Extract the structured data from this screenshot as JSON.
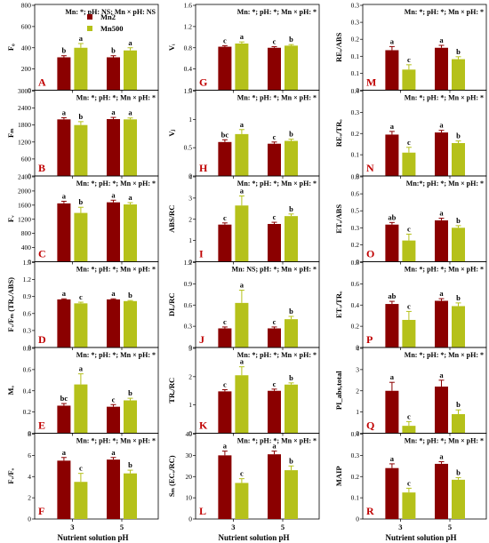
{
  "colors": {
    "Mn2": "#8b0000",
    "Mn500": "#b5c11a"
  },
  "legend": [
    {
      "name": "Mn2",
      "color": "#8b0000"
    },
    {
      "name": "Mn500",
      "color": "#b5c11a"
    }
  ],
  "xlabel": "Nutrient solution pH",
  "categories": [
    "3",
    "5"
  ],
  "chart_data": [
    {
      "id": "A",
      "type": "bar",
      "ylabel": "F₀",
      "ylim": [
        0,
        800
      ],
      "yticks": [
        0,
        200,
        400,
        600,
        800
      ],
      "annotation": "Mn: *; pH: NS; Mn × pH: NS",
      "series": [
        {
          "name": "Mn2",
          "values": [
            310,
            310
          ],
          "err": [
            15,
            15
          ],
          "letters": [
            "b",
            "b"
          ]
        },
        {
          "name": "Mn500",
          "values": [
            400,
            375
          ],
          "err": [
            40,
            25
          ],
          "letters": [
            "a",
            "a"
          ]
        }
      ]
    },
    {
      "id": "B",
      "type": "bar",
      "ylabel": "Fₘ",
      "ylim": [
        0,
        3000
      ],
      "yticks": [
        0,
        600,
        1200,
        1800,
        2400,
        3000
      ],
      "annotation": "Mn: *; pH: *; Mn × pH: *",
      "series": [
        {
          "name": "Mn2",
          "values": [
            2000,
            2010
          ],
          "err": [
            60,
            60
          ],
          "letters": [
            "a",
            "a"
          ]
        },
        {
          "name": "Mn500",
          "values": [
            1800,
            2000
          ],
          "err": [
            120,
            50
          ],
          "letters": [
            "b",
            "a"
          ]
        }
      ]
    },
    {
      "id": "C",
      "type": "bar",
      "ylabel": "Fᵥ",
      "ylim": [
        0,
        2400
      ],
      "yticks": [
        0,
        400,
        800,
        1200,
        1600,
        2000,
        2400
      ],
      "annotation": "Mn: *; pH: *; Mn × pH: *",
      "series": [
        {
          "name": "Mn2",
          "values": [
            1650,
            1680
          ],
          "err": [
            60,
            60
          ],
          "letters": [
            "a",
            "a"
          ]
        },
        {
          "name": "Mn500",
          "values": [
            1380,
            1620
          ],
          "err": [
            160,
            50
          ],
          "letters": [
            "b",
            "a"
          ]
        }
      ]
    },
    {
      "id": "D",
      "type": "bar",
      "ylabel": "Fᵥ/Fₘ (TRₒ/ABS)",
      "ylim": [
        0,
        1.5
      ],
      "yticks": [
        0,
        0.3,
        0.6,
        0.9,
        1.2,
        1.5
      ],
      "annotation": "Mn: *; pH: *; Mn × pH: *",
      "series": [
        {
          "name": "Mn2",
          "values": [
            0.85,
            0.85
          ],
          "err": [
            0.01,
            0.01
          ],
          "letters": [
            "a",
            "a"
          ]
        },
        {
          "name": "Mn500",
          "values": [
            0.78,
            0.82
          ],
          "err": [
            0.02,
            0.01
          ],
          "letters": [
            "c",
            "b"
          ]
        }
      ]
    },
    {
      "id": "E",
      "type": "bar",
      "ylabel": "Mₒ",
      "ylim": [
        0,
        0.8
      ],
      "yticks": [
        0,
        0.2,
        0.4,
        0.6,
        0.8
      ],
      "annotation": "Mn: *; pH: *; Mn × pH: *",
      "series": [
        {
          "name": "Mn2",
          "values": [
            0.26,
            0.25
          ],
          "err": [
            0.02,
            0.02
          ],
          "letters": [
            "bc",
            "c"
          ]
        },
        {
          "name": "Mn500",
          "values": [
            0.46,
            0.31
          ],
          "err": [
            0.1,
            0.02
          ],
          "letters": [
            "a",
            "b"
          ]
        }
      ]
    },
    {
      "id": "F",
      "type": "bar",
      "ylabel": "Fᵥ/Fₒ",
      "ylim": [
        0,
        8
      ],
      "yticks": [
        0,
        2,
        4,
        6,
        8
      ],
      "annotation": "Mn: *; pH: *; Mn × pH: *",
      "series": [
        {
          "name": "Mn2",
          "values": [
            5.5,
            5.6
          ],
          "err": [
            0.3,
            0.2
          ],
          "letters": [
            "a",
            "a"
          ]
        },
        {
          "name": "Mn500",
          "values": [
            3.5,
            4.3
          ],
          "err": [
            0.8,
            0.3
          ],
          "letters": [
            "c",
            "b"
          ]
        }
      ]
    },
    {
      "id": "G",
      "type": "bar",
      "ylabel": "Vᵢ",
      "ylim": [
        0,
        1.6
      ],
      "yticks": [
        0,
        0.4,
        0.8,
        1.2,
        1.6
      ],
      "annotation": "Mn: *; pH: *; Mn × pH: *",
      "series": [
        {
          "name": "Mn2",
          "values": [
            0.82,
            0.8
          ],
          "err": [
            0.02,
            0.02
          ],
          "letters": [
            "c",
            "c"
          ]
        },
        {
          "name": "Mn500",
          "values": [
            0.88,
            0.84
          ],
          "err": [
            0.03,
            0.02
          ],
          "letters": [
            "a",
            "b"
          ]
        }
      ]
    },
    {
      "id": "H",
      "type": "bar",
      "ylabel": "Vⱼ",
      "ylim": [
        0,
        1.5
      ],
      "yticks": [
        0,
        0.5,
        1.0,
        1.5
      ],
      "annotation": "Mn: *; pH: *; Mn × pH: *",
      "series": [
        {
          "name": "Mn2",
          "values": [
            0.6,
            0.57
          ],
          "err": [
            0.04,
            0.03
          ],
          "letters": [
            "bc",
            "c"
          ]
        },
        {
          "name": "Mn500",
          "values": [
            0.74,
            0.62
          ],
          "err": [
            0.08,
            0.03
          ],
          "letters": [
            "a",
            "b"
          ]
        }
      ]
    },
    {
      "id": "I",
      "type": "bar",
      "ylabel": "ABS/RC",
      "ylim": [
        0,
        4
      ],
      "yticks": [
        0,
        1,
        2,
        3,
        4
      ],
      "annotation": "Mn: *; pH: *; Mn × pH: *",
      "series": [
        {
          "name": "Mn2",
          "values": [
            1.75,
            1.78
          ],
          "err": [
            0.08,
            0.08
          ],
          "letters": [
            "c",
            "c"
          ]
        },
        {
          "name": "Mn500",
          "values": [
            2.65,
            2.15
          ],
          "err": [
            0.45,
            0.1
          ],
          "letters": [
            "a",
            "b"
          ]
        }
      ]
    },
    {
      "id": "J",
      "type": "bar",
      "ylabel": "DIₒ/RC",
      "ylim": [
        0,
        1.2
      ],
      "yticks": [
        0,
        0.3,
        0.6,
        0.9,
        1.2
      ],
      "annotation": "Mn: NS; pH: *; Mn × pH: *",
      "series": [
        {
          "name": "Mn2",
          "values": [
            0.27,
            0.27
          ],
          "err": [
            0.02,
            0.02
          ],
          "letters": [
            "c",
            "c"
          ]
        },
        {
          "name": "Mn500",
          "values": [
            0.63,
            0.4
          ],
          "err": [
            0.18,
            0.04
          ],
          "letters": [
            "a",
            "b"
          ]
        }
      ]
    },
    {
      "id": "K",
      "type": "bar",
      "ylabel": "TRₒ/RC",
      "ylim": [
        0,
        3
      ],
      "yticks": [
        0,
        1,
        2,
        3
      ],
      "annotation": "Mn: *; pH: *; Mn × pH: *",
      "series": [
        {
          "name": "Mn2",
          "values": [
            1.48,
            1.5
          ],
          "err": [
            0.06,
            0.06
          ],
          "letters": [
            "c",
            "c"
          ]
        },
        {
          "name": "Mn500",
          "values": [
            2.05,
            1.72
          ],
          "err": [
            0.3,
            0.06
          ],
          "letters": [
            "a",
            "b"
          ]
        }
      ]
    },
    {
      "id": "L",
      "type": "bar",
      "ylabel": "Sₘ (ECₒ/RC)",
      "ylim": [
        0,
        40
      ],
      "yticks": [
        0,
        10,
        20,
        30,
        40
      ],
      "annotation": "Mn: *; pH: *; Mn × pH: *",
      "series": [
        {
          "name": "Mn2",
          "values": [
            30,
            30.5
          ],
          "err": [
            2,
            1.5
          ],
          "letters": [
            "a",
            "a"
          ]
        },
        {
          "name": "Mn500",
          "values": [
            17,
            23
          ],
          "err": [
            2,
            2
          ],
          "letters": [
            "c",
            "b"
          ]
        }
      ]
    },
    {
      "id": "M",
      "type": "bar",
      "ylabel": "REₒ/ABS",
      "ylim": [
        0,
        0.35
      ],
      "yticks": [
        0,
        0.07,
        0.14,
        0.21,
        0.28,
        0.35
      ],
      "annotation": "Mn: *; pH: *; Mn × pH: *",
      "series": [
        {
          "name": "Mn2",
          "values": [
            0.165,
            0.175
          ],
          "err": [
            0.015,
            0.01
          ],
          "letters": [
            "a",
            "a"
          ]
        },
        {
          "name": "Mn500",
          "values": [
            0.085,
            0.128
          ],
          "err": [
            0.02,
            0.01
          ],
          "letters": [
            "c",
            "b"
          ]
        }
      ]
    },
    {
      "id": "N",
      "type": "bar",
      "ylabel": "REₒ/TRₒ",
      "ylim": [
        0,
        0.4
      ],
      "yticks": [
        0,
        0.1,
        0.2,
        0.3,
        0.4
      ],
      "annotation": "Mn: *; pH: *; Mn × pH: *",
      "series": [
        {
          "name": "Mn2",
          "values": [
            0.195,
            0.205
          ],
          "err": [
            0.015,
            0.01
          ],
          "letters": [
            "a",
            "a"
          ]
        },
        {
          "name": "Mn500",
          "values": [
            0.11,
            0.155
          ],
          "err": [
            0.025,
            0.01
          ],
          "letters": [
            "c",
            "b"
          ]
        }
      ]
    },
    {
      "id": "O",
      "type": "bar",
      "ylabel": "ETₒ/ABS",
      "ylim": [
        0,
        0.8
      ],
      "yticks": [
        0,
        0.16,
        0.32,
        0.48,
        0.64,
        0.8
      ],
      "annotation": "Mn:*; pH: *; Mn × pH: *",
      "series": [
        {
          "name": "Mn2",
          "values": [
            0.35,
            0.39
          ],
          "err": [
            0.02,
            0.02
          ],
          "letters": [
            "ab",
            "a"
          ]
        },
        {
          "name": "Mn500",
          "values": [
            0.2,
            0.32
          ],
          "err": [
            0.06,
            0.02
          ],
          "letters": [
            "c",
            "b"
          ]
        }
      ]
    },
    {
      "id": "P",
      "type": "bar",
      "ylabel": "ETₒ/TRₒ",
      "ylim": [
        0,
        0.8
      ],
      "yticks": [
        0,
        0.2,
        0.4,
        0.6,
        0.8
      ],
      "annotation": "Mn: *; pH: *; Mn × pH: *",
      "series": [
        {
          "name": "Mn2",
          "values": [
            0.41,
            0.44
          ],
          "err": [
            0.025,
            0.02
          ],
          "letters": [
            "ab",
            "a"
          ]
        },
        {
          "name": "Mn500",
          "values": [
            0.26,
            0.39
          ],
          "err": [
            0.08,
            0.03
          ],
          "letters": [
            "c",
            "b"
          ]
        }
      ]
    },
    {
      "id": "Q",
      "type": "bar",
      "ylabel": "PI_abs,total",
      "ylim": [
        0,
        4
      ],
      "yticks": [
        0,
        1,
        2,
        3,
        4
      ],
      "annotation": "Mn: *; pH: *; Mn × pH: *",
      "series": [
        {
          "name": "Mn2",
          "values": [
            2.0,
            2.2
          ],
          "err": [
            0.4,
            0.3
          ],
          "letters": [
            "a",
            "a"
          ]
        },
        {
          "name": "Mn500",
          "values": [
            0.35,
            0.9
          ],
          "err": [
            0.2,
            0.2
          ],
          "letters": [
            "c",
            "b"
          ]
        }
      ]
    },
    {
      "id": "R",
      "type": "bar",
      "ylabel": "MAIP",
      "ylim": [
        0,
        0.4
      ],
      "yticks": [
        0,
        0.1,
        0.2,
        0.3,
        0.4
      ],
      "annotation": "Mn: *; pH: *; Mn × pH: *",
      "series": [
        {
          "name": "Mn2",
          "values": [
            0.24,
            0.26
          ],
          "err": [
            0.02,
            0.01
          ],
          "letters": [
            "a",
            "a"
          ]
        },
        {
          "name": "Mn500",
          "values": [
            0.125,
            0.185
          ],
          "err": [
            0.02,
            0.01
          ],
          "letters": [
            "c",
            "b"
          ]
        }
      ]
    }
  ]
}
